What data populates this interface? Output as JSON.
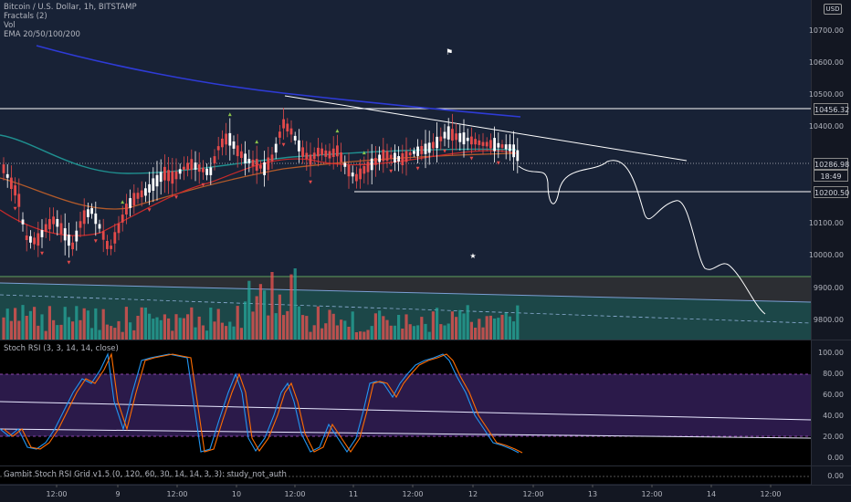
{
  "chart": {
    "symbol": "Bitcoin / U.S. Dollar, 1h, BITSTAMP",
    "indicators": [
      "Fractals (2)",
      "Vol",
      "EMA 20/50/100/200"
    ],
    "currency": "USD",
    "price_axis": [
      "10700.00",
      "10600.00",
      "10500.00",
      "10400.00",
      "10100.00",
      "10000.00",
      "9900.00",
      "9800.00"
    ],
    "price_levels": {
      "resistance": "10456.32",
      "current": "10286.98",
      "countdown": "18:49",
      "support": "10200.50"
    },
    "time_axis": [
      "12:00",
      "9",
      "12:00",
      "10",
      "12:00",
      "11",
      "12:00",
      "12",
      "12:00",
      "13",
      "12:00",
      "14",
      "12:00"
    ],
    "colors": {
      "background": "#131722",
      "up_candle": "#ffffff",
      "down_candle": "#e34a4a",
      "vol_up": "#26a69a",
      "vol_down": "#ef5350",
      "ema_blue": "#2962ff",
      "ema_teal": "#26a69a",
      "ema_red": "#d32f2f",
      "stoch_k": "#2196f3",
      "stoch_d": "#ff6d00",
      "stoch_band": "#2b1a4a"
    }
  },
  "stoch_panel": {
    "title": "Stoch RSI (3, 3, 14, 14, close)",
    "axis": [
      "100.00",
      "80.00",
      "60.00",
      "40.00",
      "20.00",
      "0.00"
    ]
  },
  "grid_panel": {
    "title": "Gambit Stoch RSI Grid v1.5 (0, 120, 60, 30, 14, 14, 3, 3): study_not_auth",
    "axis": [
      "0.00"
    ]
  }
}
